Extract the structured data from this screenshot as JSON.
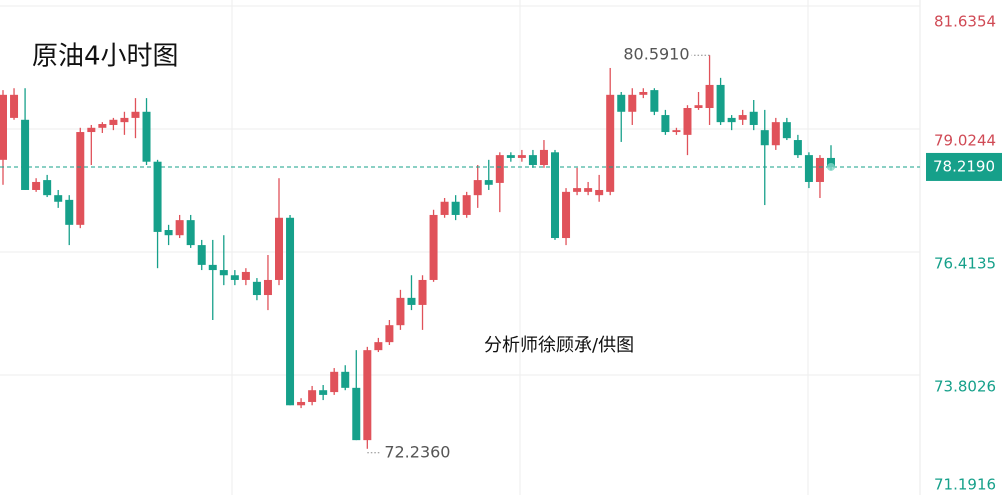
{
  "chart_data": {
    "type": "candlestick",
    "title": "原油4小时图",
    "credit": "分析师徐顾承/供图",
    "up_color": "#e0525a",
    "down_color": "#16a08a",
    "grid": true,
    "ylim": [
      71.1916,
      81.6354
    ],
    "yticks": [
      71.1916,
      73.8026,
      76.4135,
      79.0244,
      81.6354
    ],
    "last_price": {
      "value": 78.219,
      "label": "78.2190"
    },
    "annotations": [
      {
        "value": 80.591,
        "label": "80.5910"
      },
      {
        "value": 72.236,
        "label": "72.2360"
      }
    ],
    "open": [
      78.37,
      79.26,
      79.22,
      77.73,
      77.94,
      77.62,
      77.52,
      76.99,
      78.96,
      79.05,
      79.11,
      79.17,
      79.26,
      79.39,
      78.33,
      76.88,
      76.77,
      77.09,
      76.56,
      76.14,
      76.03,
      75.92,
      75.82,
      75.78,
      75.5,
      75.82,
      77.14,
      73.16,
      73.23,
      73.48,
      73.44,
      73.87,
      73.53,
      72.42,
      74.33,
      74.5,
      74.86,
      75.44,
      75.29,
      75.82,
      77.2,
      77.48,
      77.2,
      77.62,
      77.94,
      77.88,
      78.47,
      78.41,
      78.47,
      78.26,
      78.53,
      76.71,
      77.69,
      77.69,
      77.62,
      77.69,
      79.75,
      79.39,
      79.75,
      79.85,
      79.32,
      78.96,
      78.9,
      79.47,
      79.47,
      79.96,
      79.26,
      79.22,
      79.39,
      79.0,
      78.68,
      79.17,
      78.79,
      78.47,
      77.9,
      78.41
    ],
    "high": [
      79.85,
      79.89,
      79.89,
      77.98,
      78.05,
      77.73,
      77.62,
      79.05,
      79.11,
      79.17,
      79.26,
      79.39,
      79.68,
      79.68,
      78.37,
      76.99,
      77.2,
      77.2,
      76.67,
      76.67,
      76.77,
      76.03,
      76.07,
      75.86,
      76.35,
      77.98,
      77.2,
      73.31,
      73.57,
      73.59,
      73.95,
      74.01,
      74.33,
      74.4,
      74.59,
      74.97,
      75.61,
      75.92,
      75.92,
      77.31,
      77.56,
      77.62,
      77.69,
      78.26,
      78.37,
      78.53,
      78.53,
      78.58,
      78.58,
      78.79,
      78.58,
      77.77,
      78.2,
      77.9,
      78.05,
      80.32,
      79.81,
      79.89,
      79.89,
      79.89,
      79.43,
      79.05,
      79.53,
      79.81,
      80.591,
      80.11,
      79.32,
      79.43,
      79.64,
      79.43,
      79.26,
      79.26,
      78.9,
      78.53,
      78.47,
      78.68
    ],
    "low": [
      77.84,
      79.22,
      77.73,
      77.69,
      77.58,
      77.35,
      76.56,
      76.92,
      78.26,
      78.94,
      79.0,
      78.9,
      78.83,
      78.26,
      76.07,
      76.56,
      76.71,
      76.5,
      76.03,
      74.97,
      75.71,
      75.71,
      75.71,
      75.39,
      75.18,
      75.71,
      73.16,
      73.1,
      73.16,
      73.27,
      73.38,
      73.48,
      72.42,
      72.236,
      74.29,
      74.44,
      74.76,
      75.18,
      74.76,
      75.78,
      77.14,
      77.09,
      77.14,
      77.35,
      77.73,
      77.26,
      78.33,
      78.33,
      78.2,
      78.2,
      76.67,
      76.56,
      77.62,
      77.62,
      77.48,
      77.62,
      78.75,
      79.11,
      79.68,
      79.32,
      78.9,
      78.9,
      78.47,
      79.43,
      79.11,
      79.11,
      79.0,
      79.11,
      79.0,
      77.41,
      78.58,
      78.79,
      78.41,
      77.77,
      77.56,
      78.15
    ],
    "close": [
      79.75,
      79.75,
      77.73,
      77.9,
      77.62,
      77.48,
      76.99,
      78.96,
      79.05,
      79.13,
      79.22,
      79.26,
      79.39,
      78.33,
      76.84,
      76.77,
      77.09,
      76.56,
      76.14,
      76.03,
      75.92,
      75.82,
      75.99,
      75.5,
      75.82,
      77.14,
      73.16,
      73.23,
      73.48,
      73.38,
      73.87,
      73.53,
      72.42,
      74.33,
      74.5,
      74.86,
      75.44,
      75.29,
      75.82,
      77.2,
      77.48,
      77.2,
      77.62,
      77.94,
      77.84,
      78.47,
      78.41,
      78.47,
      78.26,
      78.58,
      76.71,
      77.69,
      77.77,
      77.77,
      77.73,
      79.75,
      79.39,
      79.75,
      79.81,
      79.39,
      78.96,
      79.0,
      79.47,
      79.53,
      79.96,
      79.17,
      79.17,
      79.32,
      79.11,
      78.68,
      79.17,
      78.83,
      78.47,
      77.9,
      78.41,
      78.219
    ]
  }
}
